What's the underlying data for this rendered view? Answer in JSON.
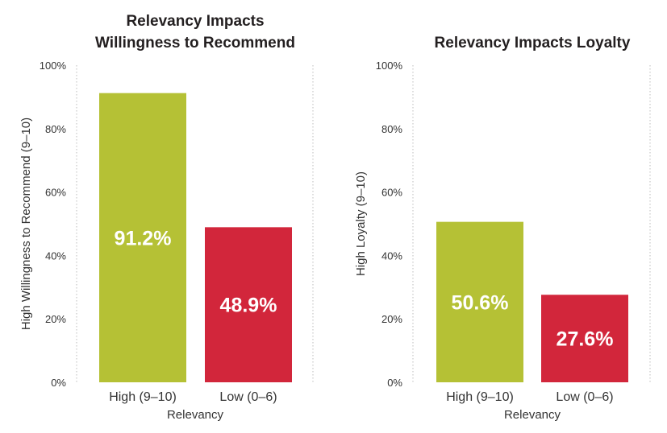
{
  "chart_data": [
    {
      "type": "bar",
      "title": [
        "Relevancy Impacts",
        "Willingness to Recommend"
      ],
      "categories": [
        "High (9–10)",
        "Low (0–6)"
      ],
      "values": [
        91.2,
        48.9
      ],
      "data_labels": [
        "91.2%",
        "48.9%"
      ],
      "bar_colors": [
        "#b5c135",
        "#d2263b"
      ],
      "xlabel": "Relevancy",
      "ylabel": "High Willingness to Recommend (9–10)",
      "ylim": [
        0,
        100
      ],
      "yticks": [
        "0%",
        "20%",
        "40%",
        "60%",
        "80%",
        "100%"
      ],
      "grid": false,
      "legend": "none"
    },
    {
      "type": "bar",
      "title": [
        "Relevancy Impacts Loyalty"
      ],
      "categories": [
        "High (9–10)",
        "Low (0–6)"
      ],
      "values": [
        50.6,
        27.6
      ],
      "data_labels": [
        "50.6%",
        "27.6%"
      ],
      "bar_colors": [
        "#b5c135",
        "#d2263b"
      ],
      "xlabel": "Relevancy",
      "ylabel": "High Loyalty (9–10)",
      "ylim": [
        0,
        100
      ],
      "yticks": [
        "0%",
        "20%",
        "40%",
        "60%",
        "80%",
        "100%"
      ],
      "grid": false,
      "legend": "none"
    }
  ]
}
